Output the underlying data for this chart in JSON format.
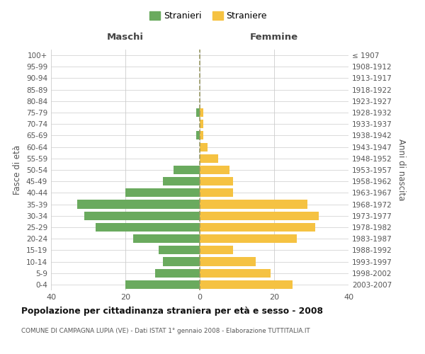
{
  "age_groups": [
    "0-4",
    "5-9",
    "10-14",
    "15-19",
    "20-24",
    "25-29",
    "30-34",
    "35-39",
    "40-44",
    "45-49",
    "50-54",
    "55-59",
    "60-64",
    "65-69",
    "70-74",
    "75-79",
    "80-84",
    "85-89",
    "90-94",
    "95-99",
    "100+"
  ],
  "birth_years": [
    "2003-2007",
    "1998-2002",
    "1993-1997",
    "1988-1992",
    "1983-1987",
    "1978-1982",
    "1973-1977",
    "1968-1972",
    "1963-1967",
    "1958-1962",
    "1953-1957",
    "1948-1952",
    "1943-1947",
    "1938-1942",
    "1933-1937",
    "1928-1932",
    "1923-1927",
    "1918-1922",
    "1913-1917",
    "1908-1912",
    "≤ 1907"
  ],
  "maschi": [
    20,
    12,
    10,
    11,
    18,
    28,
    31,
    33,
    20,
    10,
    7,
    0,
    0,
    1,
    0,
    1,
    0,
    0,
    0,
    0,
    0
  ],
  "femmine": [
    25,
    19,
    15,
    9,
    26,
    31,
    32,
    29,
    9,
    9,
    8,
    5,
    2,
    1,
    1,
    1,
    0,
    0,
    0,
    0,
    0
  ],
  "color_maschi": "#6aaa5e",
  "color_femmine": "#f5c242",
  "title": "Popolazione per cittadinanza straniera per età e sesso - 2008",
  "subtitle": "COMUNE DI CAMPAGNA LUPIA (VE) - Dati ISTAT 1° gennaio 2008 - Elaborazione TUTTITALIA.IT",
  "xlabel_left": "Maschi",
  "xlabel_right": "Femmine",
  "ylabel_left": "Fasce di età",
  "ylabel_right": "Anni di nascita",
  "legend_maschi": "Stranieri",
  "legend_femmine": "Straniere",
  "xlim": 40,
  "background_color": "#ffffff",
  "grid_color": "#cccccc",
  "dashed_line_color": "#999966"
}
